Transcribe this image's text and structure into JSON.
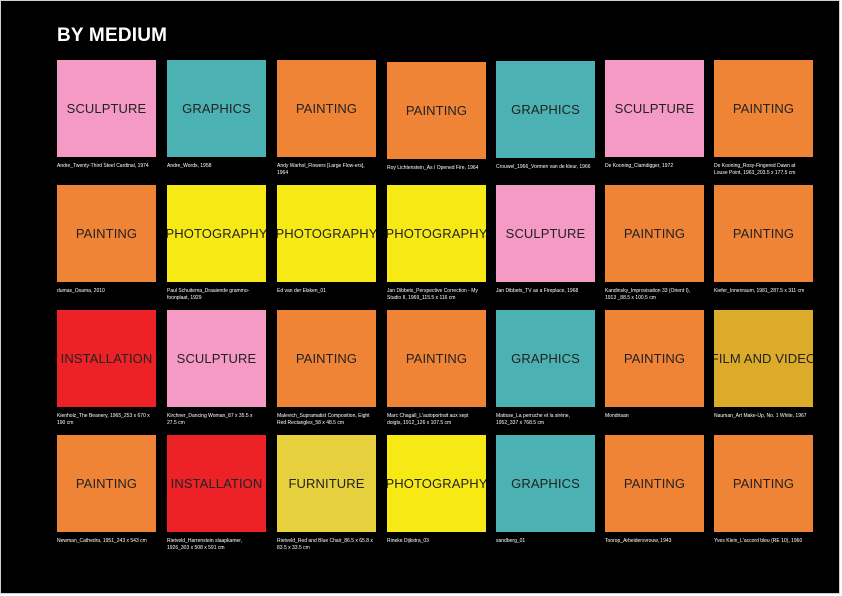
{
  "title": "BY MEDIUM",
  "colors": {
    "SCULPTURE": "#f49ac5",
    "GRAPHICS": "#4bb1b2",
    "PAINTING": "#f08436",
    "PHOTOGRAPHY": "#f7ea14",
    "INSTALLATION": "#ec2227",
    "FILM AND VIDEO": "#dcab2a",
    "FURNITURE": "#e6d03e"
  },
  "rows": [
    [
      {
        "medium": "SCULPTURE",
        "caption": "Andre_Twenty-Third Steel Cardinal, 1974"
      },
      {
        "medium": "GRAPHICS",
        "caption": "Andre_Words, 1958"
      },
      {
        "medium": "PAINTING",
        "caption": "Andy Warhol_Flowers [Large Flow-ers], 1964"
      },
      {
        "medium": "PAINTING",
        "caption": "Roy Lichtenstein_As I Opened Fire, 1964"
      },
      {
        "medium": "GRAPHICS",
        "caption": "Crouwel_1966_Vormen van de kleur, 1966"
      },
      {
        "medium": "SCULPTURE",
        "caption": "De Kooning_Clamdigger, 1972"
      },
      {
        "medium": "PAINTING",
        "caption": "De Kooning_Rosy-Fingered Dawn at Louse Point, 1963_203.5 x 177.5 cm"
      }
    ],
    [
      {
        "medium": "PAINTING",
        "caption": "dumas_Osama, 2010"
      },
      {
        "medium": "PHOTOGRAPHY",
        "caption": "Paul Schuitema_Draaiende grammo-foonplaat, 1929"
      },
      {
        "medium": "PHOTOGRAPHY",
        "caption": "Ed van der Elsken_01"
      },
      {
        "medium": "PHOTOGRAPHY",
        "caption": "Jan Dibbets_Perspective Correction - My Studio II, 1969_115.5 x 116 cm"
      },
      {
        "medium": "SCULPTURE",
        "caption": "Jan Dibbets_TV as a Fireplace, 1968"
      },
      {
        "medium": "PAINTING",
        "caption": "Kandinsky_Improvisation 33 (Orient I), 1913 _88.5 x 100.5 cm"
      },
      {
        "medium": "PAINTING",
        "caption": "Kiefer_Innenraum, 1981_287.5 x 311 cm"
      }
    ],
    [
      {
        "medium": "INSTALLATION",
        "caption": "Kienholz_The Beanery, 1965_253 x 670 x 190 cm"
      },
      {
        "medium": "SCULPTURE",
        "caption": "Kirchner_Dancing Woman_87 x 35.5 x 27.5 cm"
      },
      {
        "medium": "PAINTING",
        "caption": "Malevich_Supramatist Composition, Eight Red Rectangles_58 x 48.5 cm"
      },
      {
        "medium": "PAINTING",
        "caption": "Marc Chagall_L'autoportrait aux sept doigts, 1912_126 x 107.5 cm"
      },
      {
        "medium": "GRAPHICS",
        "caption": "Matisse_La perruche et la sirène, 1952_337 x 768.5 cm"
      },
      {
        "medium": "PAINTING",
        "caption": "Mondriaan"
      },
      {
        "medium": "FILM AND VIDEO",
        "caption": "Nauman_Art Make-Up, No. 1 White, 1967"
      }
    ],
    [
      {
        "medium": "PAINTING",
        "caption": "Newman_Cathedra, 1951_243 x 543 cm"
      },
      {
        "medium": "INSTALLATION",
        "caption": "Rietveld_Harrenstein slaapkamer, 1926_303 x 508 x 591 cm"
      },
      {
        "medium": "FURNITURE",
        "caption": "Rietveld_Red and Blue Chair_86.5 x 65.8 x 83.5 x 33.5 cm"
      },
      {
        "medium": "PHOTOGRAPHY",
        "caption": "Rineke Dijkstra_03"
      },
      {
        "medium": "GRAPHICS",
        "caption": "sandberg_01"
      },
      {
        "medium": "PAINTING",
        "caption": "Toorop_Arbeidersvrouw, 1943"
      },
      {
        "medium": "PAINTING",
        "caption": "Yves Klein_L'accord bleu (RE 10), 1960"
      }
    ]
  ]
}
